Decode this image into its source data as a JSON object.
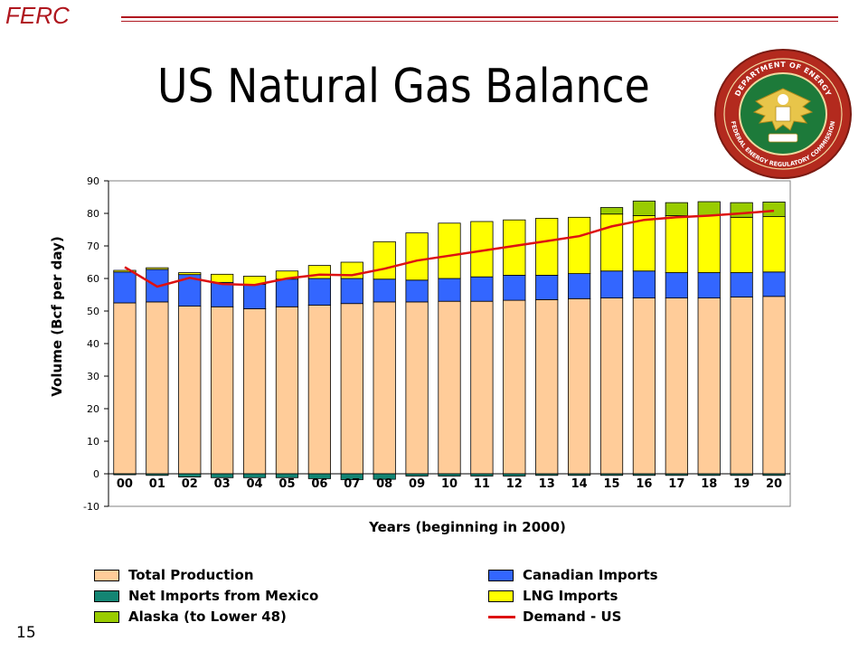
{
  "header": {
    "brand": "FERC",
    "title": "US Natural Gas Balance"
  },
  "seal": {
    "top_text": "DEPARTMENT OF ENERGY",
    "bottom_text": "FEDERAL ENERGY REGULATORY COMMISSION"
  },
  "footer": {
    "page_number": "15"
  },
  "colors": {
    "brand": "#b0171f",
    "production": "#ffcc99",
    "canadian": "#3366ff",
    "mexico": "#138573",
    "lng": "#ffff00",
    "alaska": "#99cc00",
    "demand": "#dd1111"
  },
  "chart_data": {
    "type": "bar",
    "stacked": true,
    "categories": [
      "00",
      "01",
      "02",
      "03",
      "04",
      "05",
      "06",
      "07",
      "08",
      "09",
      "10",
      "11",
      "12",
      "13",
      "14",
      "15",
      "16",
      "17",
      "18",
      "19",
      "20"
    ],
    "xlabel": "Years (beginning in 2000)",
    "ylabel": "Volume (Bcf per day)",
    "ylim": [
      -10,
      90
    ],
    "yticks": [
      -10,
      0,
      10,
      20,
      30,
      40,
      50,
      60,
      70,
      80,
      90
    ],
    "grid": false,
    "series": [
      {
        "name": "Total Production",
        "key": "production",
        "type": "bar",
        "values": [
          52.5,
          52.8,
          51.5,
          51.3,
          50.7,
          51.3,
          51.8,
          52.3,
          52.8,
          52.8,
          53.0,
          53.0,
          53.3,
          53.5,
          53.8,
          54.0,
          54.0,
          54.0,
          54.0,
          54.3,
          54.5
        ]
      },
      {
        "name": "Canadian Imports",
        "key": "canadian",
        "type": "bar",
        "values": [
          9.5,
          10.0,
          9.7,
          7.5,
          7.5,
          8.5,
          8.2,
          7.7,
          7.0,
          6.7,
          7.0,
          7.5,
          7.7,
          7.5,
          7.7,
          8.3,
          8.3,
          7.8,
          7.8,
          7.5,
          7.5
        ]
      },
      {
        "name": "Net Imports from Mexico",
        "key": "mexico",
        "type": "bar",
        "values": [
          -0.3,
          -0.5,
          -1.0,
          -1.2,
          -1.2,
          -1.2,
          -1.5,
          -1.8,
          -1.7,
          -0.7,
          -0.7,
          -0.7,
          -0.7,
          -0.5,
          -0.5,
          -0.5,
          -0.5,
          -0.5,
          -0.5,
          -0.5,
          -0.5
        ]
      },
      {
        "name": "LNG Imports",
        "key": "lng",
        "type": "bar",
        "values": [
          0.5,
          0.5,
          0.6,
          2.5,
          2.5,
          2.5,
          4.0,
          5.0,
          11.5,
          14.5,
          17.0,
          17.0,
          17.0,
          17.5,
          17.3,
          17.5,
          17.0,
          17.5,
          17.5,
          17.0,
          17.0
        ]
      },
      {
        "name": "Alaska (to Lower 48)",
        "key": "alaska",
        "type": "bar",
        "values": [
          0,
          0,
          0,
          0,
          0,
          0,
          0,
          0,
          0,
          0,
          0,
          0,
          0,
          0,
          0,
          2.0,
          4.5,
          4.0,
          4.3,
          4.5,
          4.5
        ]
      },
      {
        "name": "Demand - US",
        "key": "demand",
        "type": "line",
        "values": [
          63.5,
          57.5,
          60.2,
          58.3,
          58.0,
          60.0,
          61.2,
          61.0,
          63.0,
          65.5,
          67.0,
          68.5,
          70.0,
          71.5,
          73.0,
          76.0,
          78.0,
          78.8,
          79.3,
          80.0,
          80.8
        ]
      }
    ]
  }
}
